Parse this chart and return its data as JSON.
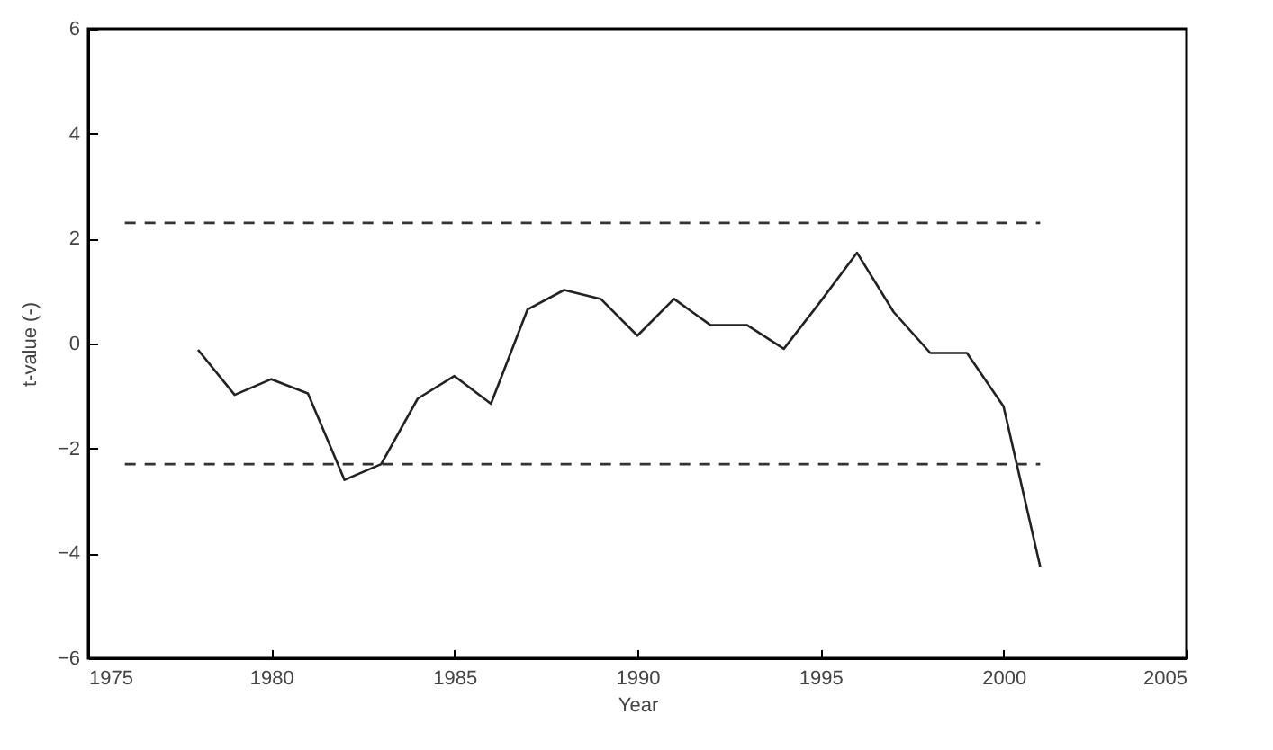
{
  "chart_data": {
    "type": "line",
    "xlabel": "Year",
    "ylabel": "t-value (-)",
    "xlim": [
      1975,
      2005
    ],
    "xticks": [
      1975,
      1980,
      1985,
      1990,
      1995,
      2000,
      2005
    ],
    "ylim": [
      -6,
      6
    ],
    "yticks": [
      -6,
      -4,
      -2,
      0,
      2,
      4,
      6
    ],
    "grid": false,
    "marker": "none",
    "series": [
      {
        "color": "#222222",
        "line_style": "solid",
        "x": [
          1978,
          1979,
          1980,
          1981,
          1982,
          1983,
          1984,
          1985,
          1986,
          1987,
          1988,
          1989,
          1990,
          1991,
          1992,
          1993,
          1994,
          1995,
          1996,
          1997,
          1998,
          1999,
          2000,
          2001
        ],
        "values": [
          -0.12,
          -0.98,
          -0.68,
          -0.95,
          -2.6,
          -2.3,
          -1.05,
          -0.62,
          -1.15,
          0.65,
          1.02,
          0.85,
          0.15,
          0.85,
          0.35,
          0.35,
          -0.1,
          0.8,
          1.73,
          0.6,
          -0.18,
          -0.18,
          -1.2,
          -4.25
        ]
      },
      {
        "color": "#333333",
        "line_style": "dashed",
        "x": [
          1976,
          2001
        ],
        "values": [
          2.3,
          2.3
        ]
      },
      {
        "color": "#333333",
        "line_style": "dashed",
        "x": [
          1976,
          2001
        ],
        "values": [
          -2.3,
          -2.3
        ]
      }
    ]
  }
}
